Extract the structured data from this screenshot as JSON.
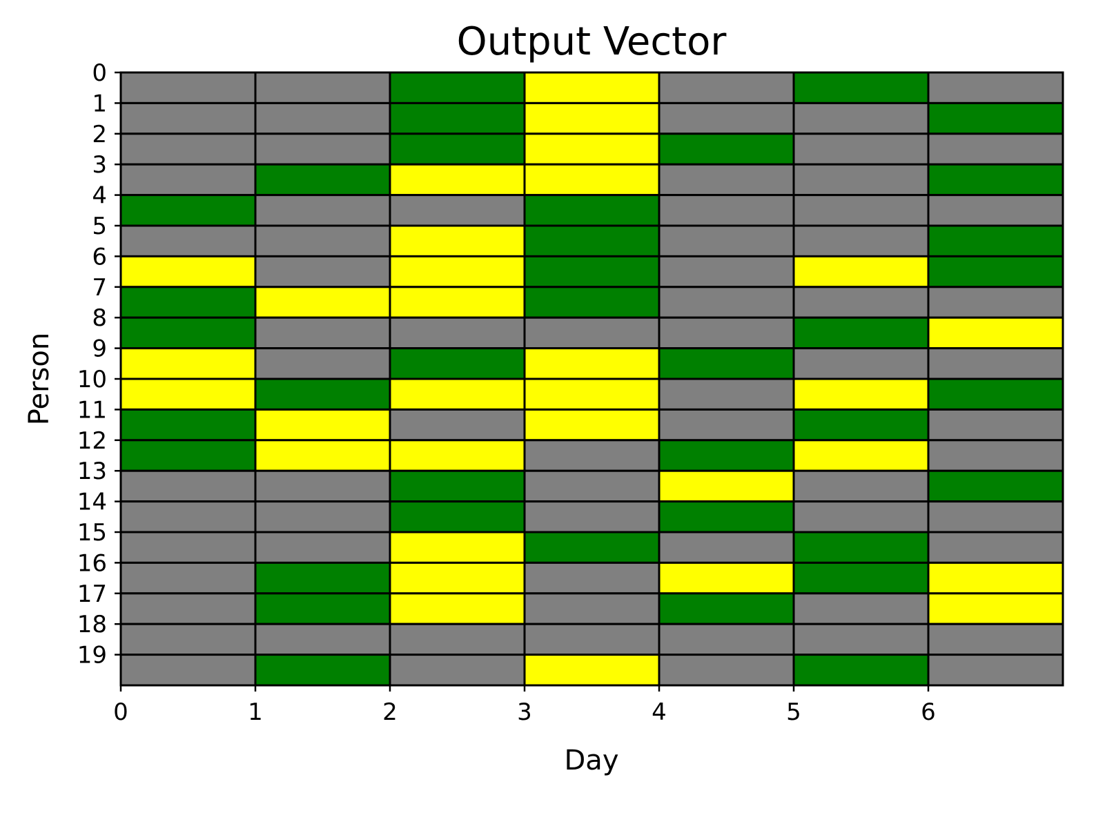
{
  "chart_data": {
    "type": "heatmap",
    "title": "Output Vector",
    "xlabel": "Day",
    "ylabel": "Person",
    "x_ticks": [
      "0",
      "1",
      "2",
      "3",
      "4",
      "5",
      "6"
    ],
    "y_ticks": [
      "0",
      "1",
      "2",
      "3",
      "4",
      "5",
      "6",
      "7",
      "8",
      "9",
      "10",
      "11",
      "12",
      "13",
      "14",
      "15",
      "16",
      "17",
      "18",
      "19"
    ],
    "xlim": [
      0,
      7
    ],
    "ylim": [
      20,
      0
    ],
    "colors": {
      "0": "#808080",
      "1": "#008000",
      "2": "#ffff00"
    },
    "values": [
      [
        0,
        0,
        1,
        2,
        0,
        1,
        0
      ],
      [
        0,
        0,
        1,
        2,
        0,
        0,
        1
      ],
      [
        0,
        0,
        1,
        2,
        1,
        0,
        0
      ],
      [
        0,
        1,
        2,
        2,
        0,
        0,
        1
      ],
      [
        1,
        0,
        0,
        1,
        0,
        0,
        0
      ],
      [
        0,
        0,
        2,
        1,
        0,
        0,
        1
      ],
      [
        2,
        0,
        2,
        1,
        0,
        2,
        1
      ],
      [
        1,
        2,
        2,
        1,
        0,
        0,
        0
      ],
      [
        1,
        0,
        0,
        0,
        0,
        1,
        2
      ],
      [
        2,
        0,
        1,
        2,
        1,
        0,
        0
      ],
      [
        2,
        1,
        2,
        2,
        0,
        2,
        1
      ],
      [
        1,
        2,
        0,
        2,
        0,
        1,
        0
      ],
      [
        1,
        2,
        2,
        0,
        1,
        2,
        0
      ],
      [
        0,
        0,
        1,
        0,
        2,
        0,
        1
      ],
      [
        0,
        0,
        1,
        0,
        1,
        0,
        0
      ],
      [
        0,
        0,
        2,
        1,
        0,
        1,
        0
      ],
      [
        0,
        1,
        2,
        0,
        2,
        1,
        2
      ],
      [
        0,
        1,
        2,
        0,
        1,
        0,
        2
      ],
      [
        0,
        0,
        0,
        0,
        0,
        0,
        0
      ],
      [
        0,
        1,
        0,
        2,
        0,
        1,
        0
      ]
    ]
  }
}
